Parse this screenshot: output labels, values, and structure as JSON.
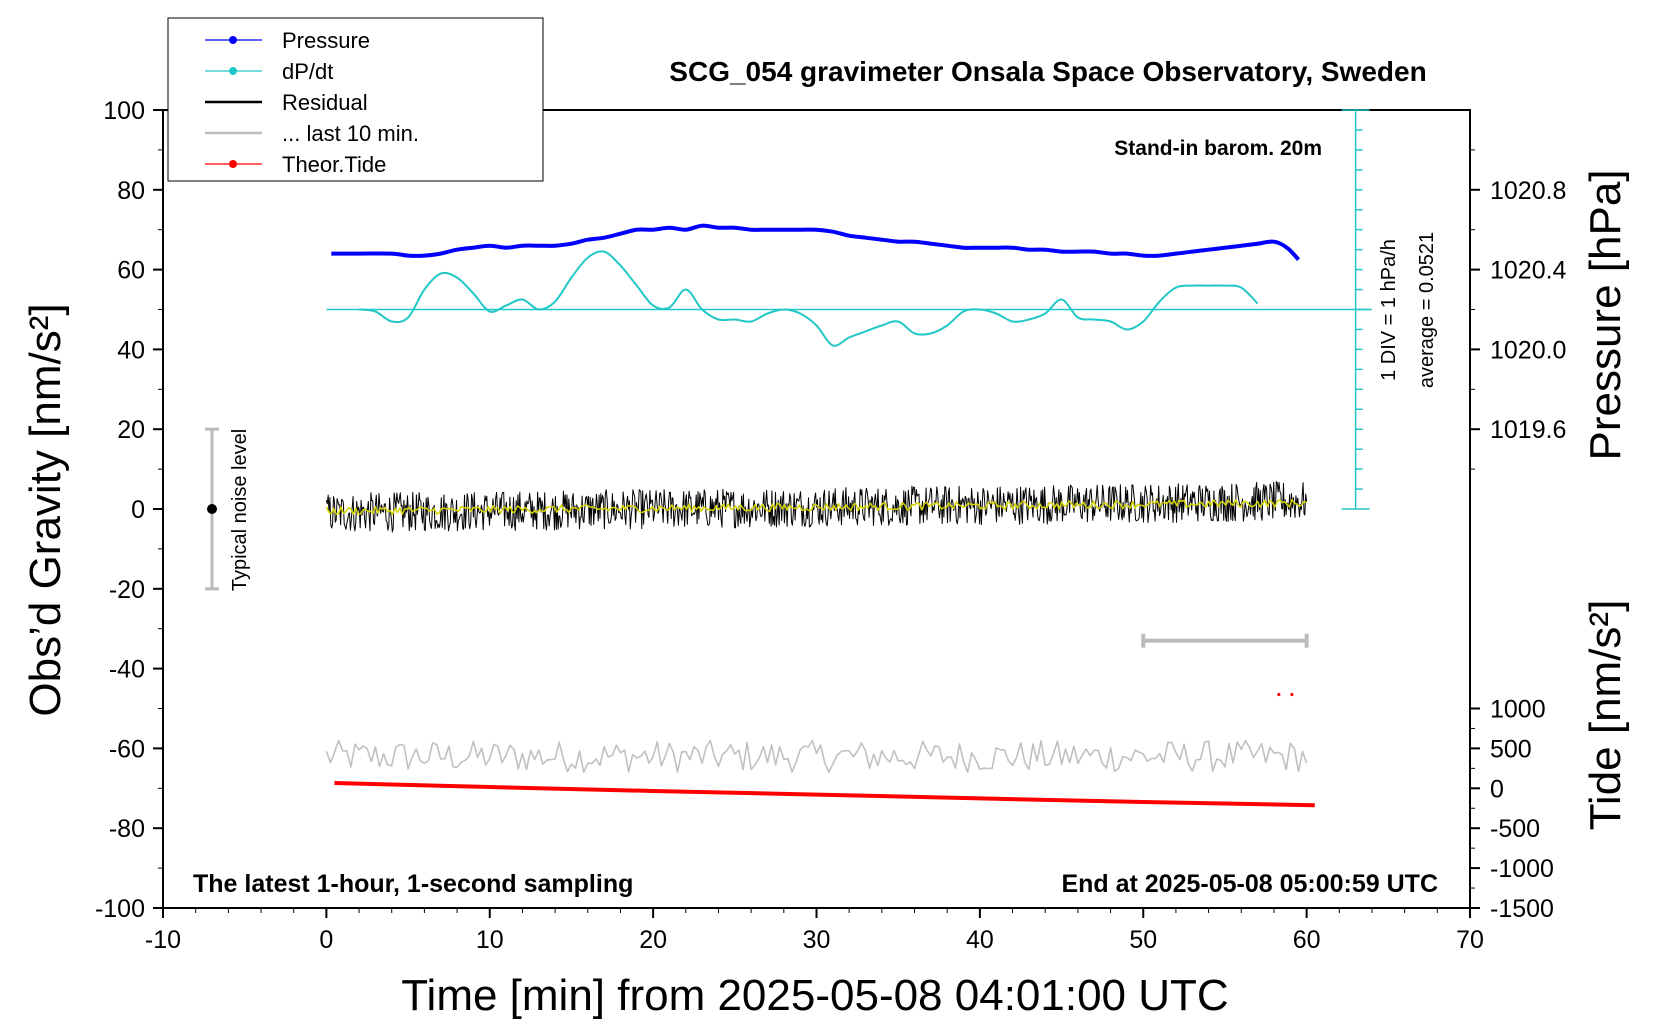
{
  "chart_data": {
    "type": "line",
    "title": "SCG_054 gravimeter Onsala Space Observatory, Sweden",
    "xlabel": "Time [min] from 2025-05-08 04:01:00 UTC",
    "ylabel_left": "Obs’d Gravity [nm/s²]",
    "ylabel_right_pressure": "Pressure [hPa]",
    "ylabel_right_tide": "Tide [nm/s²]",
    "xlim": [
      -10,
      70
    ],
    "ylim_left": [
      -100,
      100
    ],
    "xticks": [
      "-10",
      "0",
      "10",
      "20",
      "30",
      "40",
      "50",
      "60",
      "70"
    ],
    "yticks_left": [
      "-100",
      "-80",
      "-60",
      "-40",
      "-20",
      "0",
      "20",
      "40",
      "60",
      "80",
      "100"
    ],
    "pressure_ticks": [
      "1019.6",
      "1020.0",
      "1020.4",
      "1020.8"
    ],
    "pressure_axis": {
      "hPa_at_gravity_0": 1019.2,
      "hPa_per_gravity_unit": 0.02
    },
    "tide_ticks": [
      "-1500",
      "-1000",
      "-500",
      "0",
      "500",
      "1000"
    ],
    "tide_axis": {
      "value_at_gravity_-100": -1500,
      "tide_per_gravity_unit": 50
    },
    "legend": {
      "placement": "top-left",
      "entries": [
        {
          "label": "Pressure",
          "color": "#0000ff",
          "marker": true
        },
        {
          "label": "dP/dt",
          "color": "#22c7c7",
          "marker": true
        },
        {
          "label": "Residual",
          "color": "#000000",
          "marker": false
        },
        {
          "label": "... last 10 min.",
          "color": "#c0c0c0",
          "marker": false
        },
        {
          "label": "Theor.Tide",
          "color": "#ff0000",
          "marker": true
        }
      ]
    },
    "annotations": {
      "barom": "Stand-in barom. 20m",
      "div_label": "1 DIV = 1 hPa/h",
      "average_label": "average = 0.0521",
      "noise_label": "Typical noise level",
      "bottom_left": "The latest 1-hour, 1-second sampling",
      "bottom_right": "End at 2025-05-08 05:00:59 UTC"
    },
    "noise_bar": {
      "x": -7,
      "ymin": -20,
      "ymax": 20,
      "center": 0
    },
    "last10_bar": {
      "xmin": 50,
      "xmax": 60,
      "y": -33
    },
    "dpdt_scale": {
      "x": 63,
      "ymin": 0,
      "ymax": 100,
      "ticks_every": 5,
      "zero_level": 50
    },
    "series": [
      {
        "name": "Pressure",
        "axis": "pressure_hPa",
        "color": "#0000ff",
        "x": [
          0.3,
          2,
          4,
          5,
          6,
          7,
          8,
          9,
          10,
          11,
          12,
          13,
          14,
          15,
          16,
          17,
          18,
          19,
          20,
          21,
          22,
          23,
          24,
          25,
          26,
          27,
          28,
          29,
          30,
          31,
          32,
          33,
          34,
          35,
          36,
          37,
          38,
          39,
          40,
          41,
          42,
          43,
          44,
          45,
          46,
          47,
          48,
          49,
          50,
          51,
          52,
          53,
          54,
          55,
          56,
          57,
          58,
          58.8,
          59.5
        ],
        "values": [
          1020.48,
          1020.48,
          1020.48,
          1020.47,
          1020.47,
          1020.48,
          1020.5,
          1020.51,
          1020.52,
          1020.51,
          1020.52,
          1020.52,
          1020.52,
          1020.53,
          1020.55,
          1020.56,
          1020.58,
          1020.6,
          1020.6,
          1020.61,
          1020.6,
          1020.62,
          1020.61,
          1020.61,
          1020.6,
          1020.6,
          1020.6,
          1020.6,
          1020.6,
          1020.59,
          1020.57,
          1020.56,
          1020.55,
          1020.54,
          1020.54,
          1020.53,
          1020.52,
          1020.51,
          1020.51,
          1020.51,
          1020.51,
          1020.5,
          1020.5,
          1020.49,
          1020.49,
          1020.49,
          1020.48,
          1020.48,
          1020.47,
          1020.47,
          1020.48,
          1020.49,
          1020.5,
          1020.51,
          1020.52,
          1020.53,
          1020.54,
          1020.51,
          1020.45
        ]
      },
      {
        "name": "dP/dt",
        "axis": "gravity_left",
        "color": "#22c7c7",
        "x": [
          2,
          3,
          4,
          5,
          6,
          7,
          8,
          9,
          10,
          11,
          12,
          13,
          14,
          15,
          16,
          17,
          18,
          19,
          20,
          21,
          22,
          23,
          24,
          25,
          26,
          27,
          28,
          29,
          30,
          31,
          32,
          33,
          34,
          35,
          36,
          37,
          38,
          39,
          40,
          41,
          42,
          43,
          44,
          45,
          46,
          47,
          48,
          49,
          50,
          51,
          52,
          53,
          54,
          55,
          56,
          57
        ],
        "values": [
          50,
          49.5,
          47,
          48,
          55,
          59,
          58,
          54,
          49.5,
          51,
          52.5,
          50,
          52,
          58,
          63,
          64.5,
          61,
          56,
          51,
          50.5,
          55,
          50,
          47.5,
          47.5,
          47,
          49,
          50,
          49,
          46,
          41,
          43,
          44.5,
          46,
          47,
          44,
          44,
          46,
          49.5,
          50,
          49,
          47,
          47.5,
          49,
          52.5,
          48,
          47.5,
          47,
          45,
          47,
          52,
          55.5,
          56,
          56,
          56,
          55.5,
          51.5
        ]
      },
      {
        "name": "Theor.Tide",
        "axis": "tide_nm_s2",
        "color": "#ff0000",
        "x": [
          0.5,
          10,
          20,
          30,
          40,
          50,
          60.5
        ],
        "values": [
          66,
          16,
          -34,
          -79,
          -126,
          -172,
          -212
        ]
      }
    ],
    "noise_traces": {
      "residual": {
        "name": "Residual",
        "color": "#000000",
        "x_range": [
          0,
          60
        ],
        "center_start": -1,
        "center_end": 2,
        "amplitude": 5
      },
      "smoothed": {
        "color": "#d4d400",
        "x_range": [
          0,
          60
        ],
        "center_start": -0.5,
        "center_end": 1.5,
        "amplitude": 1
      },
      "last10": {
        "name": "... last 10 min.",
        "color": "#c0c0c0",
        "x_range": [
          0,
          60
        ],
        "center": -62,
        "amplitude": 4
      }
    }
  }
}
